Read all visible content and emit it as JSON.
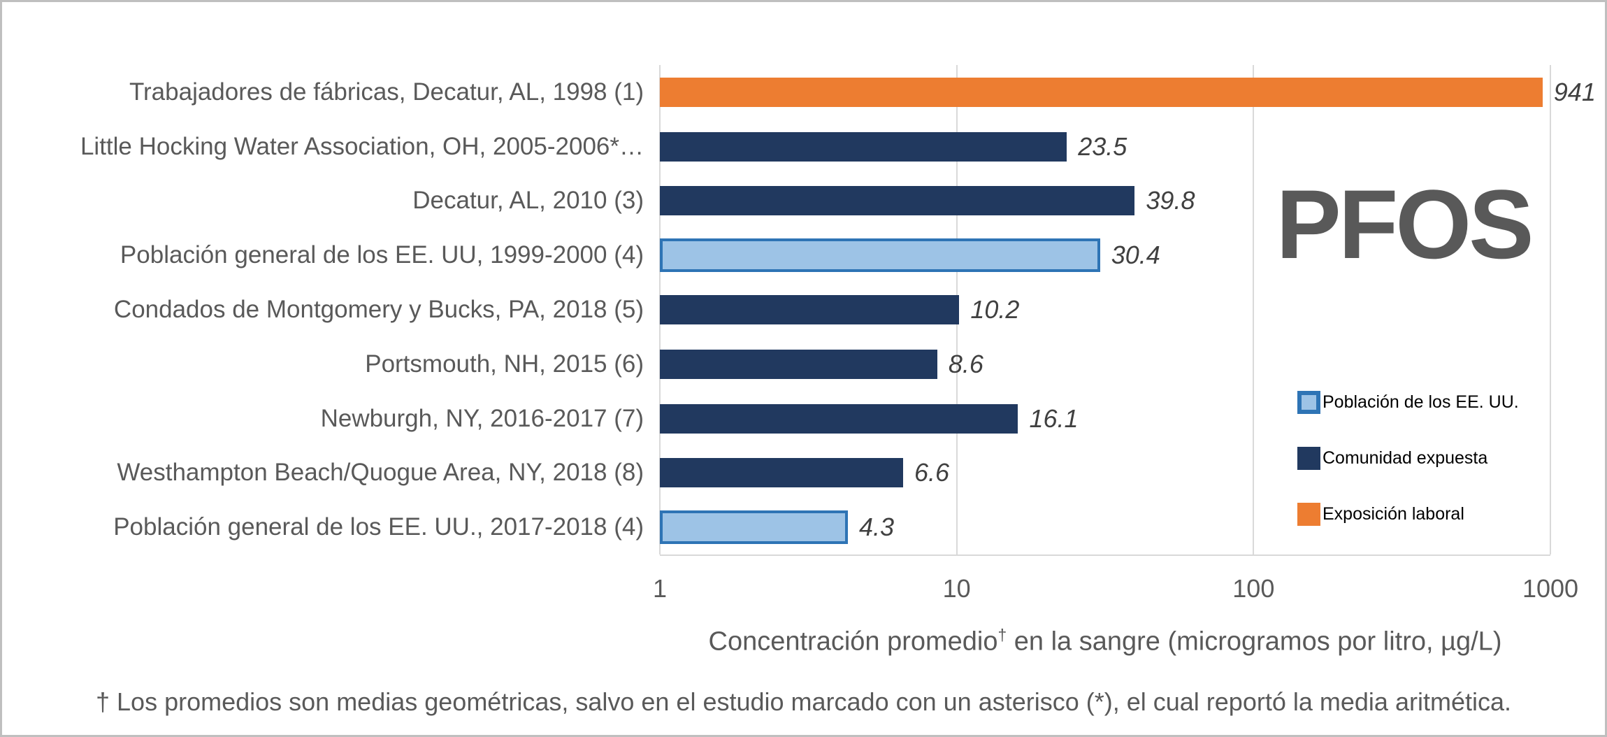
{
  "chart_data": {
    "type": "bar",
    "orientation": "horizontal",
    "title": "PFOS",
    "xlabel": "Concentración promedio† en la sangre (microgramos por litro, µg/L)",
    "xlabel_parts": {
      "main": "Concentración promedio",
      "sup": "†",
      "rest": " en la sangre (microgramos por litro, µg/L)"
    },
    "x_scale": "log",
    "xlim": [
      1,
      1000
    ],
    "ticks": [
      "1",
      "10",
      "100",
      "1000"
    ],
    "grid": "vertical-major",
    "legend_position": "right-inside",
    "rows": [
      {
        "label": "Trabajadores de fábricas, Decatur, AL, 1998  (1)",
        "value": 941,
        "value_label": "941",
        "series": "occupational"
      },
      {
        "label": "Little Hocking Water Association, OH, 2005-2006*…",
        "value": 23.5,
        "value_label": "23.5",
        "series": "exposed_community"
      },
      {
        "label": "Decatur, AL, 2010 (3)",
        "value": 39.8,
        "value_label": "39.8",
        "series": "exposed_community"
      },
      {
        "label": "Población general de los EE. UU, 1999-2000  (4)",
        "value": 30.4,
        "value_label": "30.4",
        "series": "us_population"
      },
      {
        "label": "Condados de Montgomery y Bucks, PA, 2018  (5)",
        "value": 10.2,
        "value_label": "10.2",
        "series": "exposed_community"
      },
      {
        "label": "Portsmouth, NH, 2015 (6)",
        "value": 8.6,
        "value_label": "8.6",
        "series": "exposed_community"
      },
      {
        "label": "Newburgh, NY, 2016-2017 (7)",
        "value": 16.1,
        "value_label": "16.1",
        "series": "exposed_community"
      },
      {
        "label": "Westhampton Beach/Quogue Area, NY, 2018 (8)",
        "value": 6.6,
        "value_label": "6.6",
        "series": "exposed_community"
      },
      {
        "label": "Población general de los EE. UU., 2017-2018  (4)",
        "value": 4.3,
        "value_label": "4.3",
        "series": "us_population"
      }
    ],
    "legend": [
      {
        "label": "Población de los EE. UU.",
        "series": "us_population"
      },
      {
        "label": "Comunidad expuesta",
        "series": "exposed_community"
      },
      {
        "label": "Exposición laboral",
        "series": "occupational"
      }
    ]
  },
  "footnote": "† Los promedios son medias geométricas, salvo en el estudio marcado con un asterisco (*), el cual reportó la media aritmética.",
  "colors": {
    "occupational": "#ED7D31",
    "exposed_community": "#21395F",
    "us_population_fill": "#9DC3E6",
    "us_population_border": "#2E74B5",
    "gridline": "#D9D9D9",
    "axis_text": "#595959",
    "value_text": "#404040",
    "legend_text": "#000000",
    "title_text": "#595959",
    "frame_border": "#BFBFBF"
  }
}
